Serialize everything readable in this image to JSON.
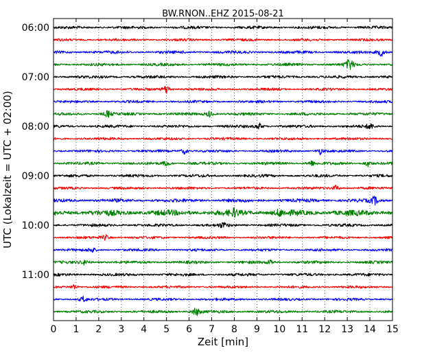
{
  "chart_data": {
    "type": "line",
    "title": "BW.RNON..EHZ 2015-08-21",
    "xlabel": "Zeit  [min]",
    "ylabel": "UTC (Lokalzeit = UTC + 02:00)",
    "xlim": [
      0,
      15
    ],
    "x_ticks": [
      "0",
      "1",
      "2",
      "3",
      "4",
      "5",
      "6",
      "7",
      "8",
      "9",
      "10",
      "11",
      "12",
      "13",
      "14",
      "15"
    ],
    "y_ticks": [
      {
        "label": "06:00",
        "row": 0
      },
      {
        "label": "07:00",
        "row": 4
      },
      {
        "label": "08:00",
        "row": 8
      },
      {
        "label": "09:00",
        "row": 12
      },
      {
        "label": "10:00",
        "row": 16
      },
      {
        "label": "11:00",
        "row": 20
      }
    ],
    "minutes_per_row": 15,
    "row_count": 24,
    "grid": {
      "vertical": true,
      "style": "dotted"
    },
    "series_colors": [
      "#000000",
      "#ff0000",
      "#0000ff",
      "#008000"
    ],
    "row_amplitude": [
      1.0,
      0.9,
      1.0,
      1.0,
      1.0,
      0.9,
      0.9,
      1.0,
      1.0,
      0.9,
      0.9,
      1.0,
      1.0,
      0.9,
      1.2,
      2.0,
      1.0,
      0.9,
      0.9,
      1.0,
      1.0,
      0.9,
      0.9,
      1.0
    ],
    "events": [
      {
        "row": 2,
        "minute": 14.5,
        "strength": 2.2
      },
      {
        "row": 3,
        "minute": 13.1,
        "strength": 3.2
      },
      {
        "row": 5,
        "minute": 5.0,
        "strength": 2.5
      },
      {
        "row": 7,
        "minute": 2.4,
        "strength": 1.8
      },
      {
        "row": 7,
        "minute": 6.9,
        "strength": 1.6
      },
      {
        "row": 8,
        "minute": 9.1,
        "strength": 1.6
      },
      {
        "row": 8,
        "minute": 14.0,
        "strength": 1.5
      },
      {
        "row": 10,
        "minute": 5.8,
        "strength": 1.5
      },
      {
        "row": 10,
        "minute": 11.8,
        "strength": 1.5
      },
      {
        "row": 11,
        "minute": 5.0,
        "strength": 1.4
      },
      {
        "row": 11,
        "minute": 11.4,
        "strength": 1.4
      },
      {
        "row": 11,
        "minute": 13.9,
        "strength": 1.5
      },
      {
        "row": 13,
        "minute": 12.5,
        "strength": 1.4
      },
      {
        "row": 14,
        "minute": 14.2,
        "strength": 2.0
      },
      {
        "row": 15,
        "minute": 8.0,
        "strength": 1.4
      },
      {
        "row": 15,
        "minute": 10.0,
        "strength": 1.4
      },
      {
        "row": 16,
        "minute": 7.5,
        "strength": 1.4
      },
      {
        "row": 17,
        "minute": 2.3,
        "strength": 1.4
      },
      {
        "row": 18,
        "minute": 1.7,
        "strength": 1.4
      },
      {
        "row": 19,
        "minute": 1.4,
        "strength": 1.4
      },
      {
        "row": 19,
        "minute": 9.6,
        "strength": 1.3
      },
      {
        "row": 21,
        "minute": 0.9,
        "strength": 1.3
      },
      {
        "row": 22,
        "minute": 1.3,
        "strength": 1.4
      },
      {
        "row": 23,
        "minute": 6.3,
        "strength": 2.4
      }
    ]
  }
}
